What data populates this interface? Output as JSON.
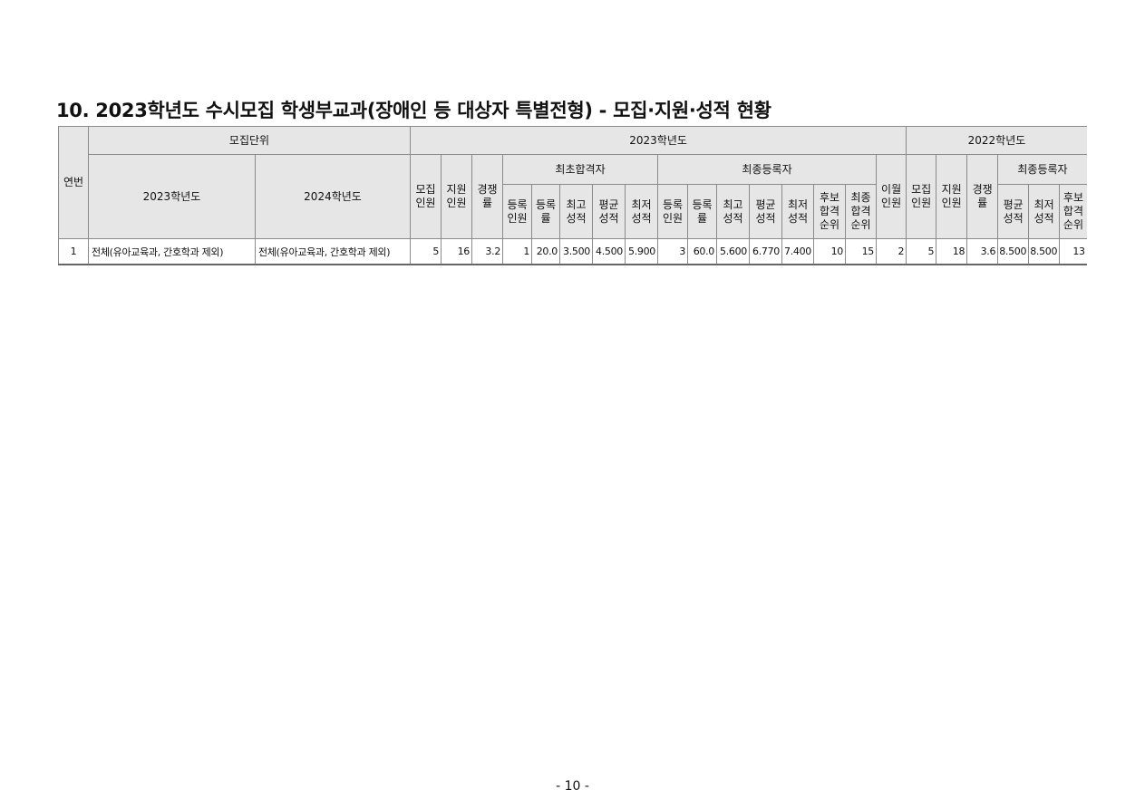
{
  "title": "10. 2023학년도 수시모집 학생부교과(장애인 등 대상자 특별전형) - 모집·지원·성적 현황",
  "headers": {
    "no": "연번",
    "unit": "모집단위",
    "unit_2023": "2023학년도",
    "unit_2024": "2024학년도",
    "year_2023": "2023학년도",
    "year_2022": "2022학년도",
    "recruit": "모집 인원",
    "apply": "지원 인원",
    "ratio": "경쟁 률",
    "first_pass": "최초합격자",
    "final_reg": "최종등록자",
    "carry": "이월 인원",
    "reg_count": "등록 인원",
    "reg_rate": "등록 률",
    "top": "최고 성적",
    "avg": "평균 성적",
    "low": "최저 성적",
    "wait_rank": "후보 합격 순위",
    "final_rank": "최종 합격 순위",
    "recruit_22": "모집 인원",
    "apply_22": "지원 인원",
    "ratio_22": "경쟁 률",
    "final_reg_22": "최종등록자",
    "avg_22": "평균 성적",
    "low_22": "최저 성적",
    "wait_22": "후보 합격 순위"
  },
  "rows": [
    {
      "no": "1",
      "unit_2023": "전체(유아교육과, 간호학과 제외)",
      "unit_2024": "전체(유아교육과, 간호학과 제외)",
      "cells": [
        "5",
        "16",
        "3.2",
        "1",
        "20.0",
        "3.500",
        "4.500",
        "5.900",
        "3",
        "60.0",
        "5.600",
        "6.770",
        "7.400",
        "10",
        "15",
        "2",
        "5",
        "18",
        "3.6",
        "8.500",
        "8.500",
        "13"
      ]
    }
  ],
  "page_number": "- 10 -"
}
